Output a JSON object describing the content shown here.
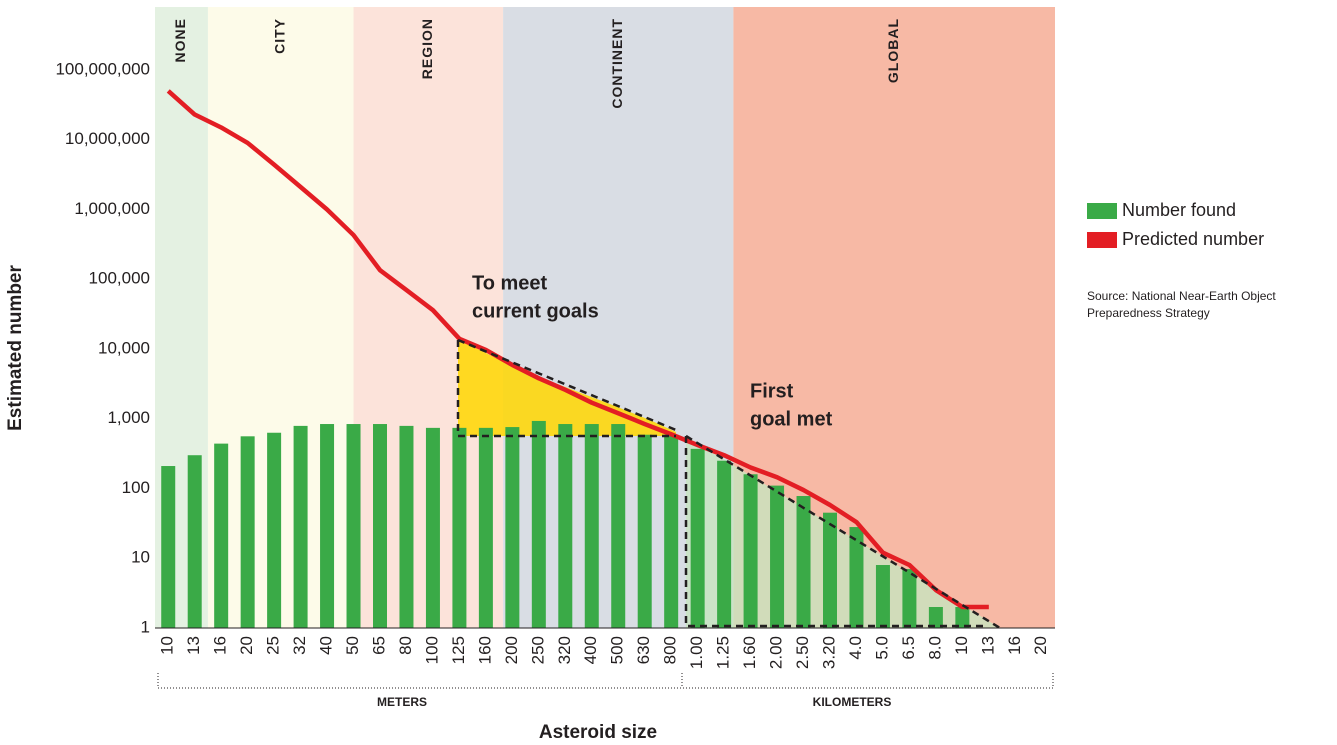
{
  "chart_data": {
    "type": "bar",
    "x_label": "Asteroid size",
    "y_label": "Estimated number",
    "log_y": true,
    "ylim": [
      1,
      800000000
    ],
    "yticks": [
      1,
      10,
      100,
      {
        "value": 1000,
        "label": "1,000"
      },
      {
        "value": 10000,
        "label": "10,000"
      },
      {
        "value": 100000,
        "label": "100,000"
      },
      {
        "value": 1000000,
        "label": "1,000,000"
      },
      {
        "value": 10000000,
        "label": "10,000,000"
      },
      {
        "value": 100000000,
        "label": "100,000,000"
      }
    ],
    "categories": [
      "10",
      "13",
      "16",
      "20",
      "25",
      "32",
      "40",
      "50",
      "65",
      "80",
      "100",
      "125",
      "160",
      "200",
      "250",
      "320",
      "400",
      "500",
      "630",
      "800",
      "1.00",
      "1.25",
      "1.60",
      "2.00",
      "2.50",
      "3.20",
      "4.0",
      "5.0",
      "6.5",
      "8.0",
      "10",
      "13",
      "16",
      "20"
    ],
    "series": [
      {
        "name": "Number found",
        "color": "#3aaa47",
        "type": "bar",
        "values": [
          210,
          300,
          440,
          560,
          630,
          790,
          840,
          840,
          840,
          790,
          740,
          740,
          740,
          760,
          930,
          840,
          840,
          840,
          590,
          590,
          370,
          250,
          160,
          110,
          78,
          45,
          28,
          8,
          7,
          2,
          2,
          null,
          null,
          null
        ]
      },
      {
        "name": "Predicted number",
        "color": "#e31e24",
        "type": "line",
        "values": [
          50000000,
          23000000,
          15000000,
          9000000,
          4400000,
          2100000,
          1000000,
          430000,
          135000,
          70000,
          36000,
          14000,
          9700,
          5900,
          3800,
          2600,
          1700,
          1200,
          840,
          600,
          420,
          300,
          200,
          145,
          95,
          58,
          33,
          12,
          8,
          3.5,
          2,
          2,
          null,
          null
        ]
      }
    ],
    "zones": [
      {
        "label": "NONE",
        "color": "#e4f1e2"
      },
      {
        "label": "CITY",
        "color": "#fdfbe9"
      },
      {
        "label": "REGION",
        "color": "#fce3da"
      },
      {
        "label": "CONTINENT",
        "color": "#d9dde4"
      },
      {
        "label": "GLOBAL",
        "color": "#f7b9a5"
      }
    ],
    "groups": [
      "METERS",
      "KILOMETERS"
    ],
    "annotations": [
      {
        "lines": [
          "To meet",
          "current goals"
        ],
        "color": "#ffd700"
      },
      {
        "lines": [
          "First",
          "goal met"
        ],
        "color": "#c7e5bf"
      }
    ],
    "legend": "right",
    "source": [
      "Source: National Near-Earth Object",
      "Preparedness Strategy"
    ]
  }
}
